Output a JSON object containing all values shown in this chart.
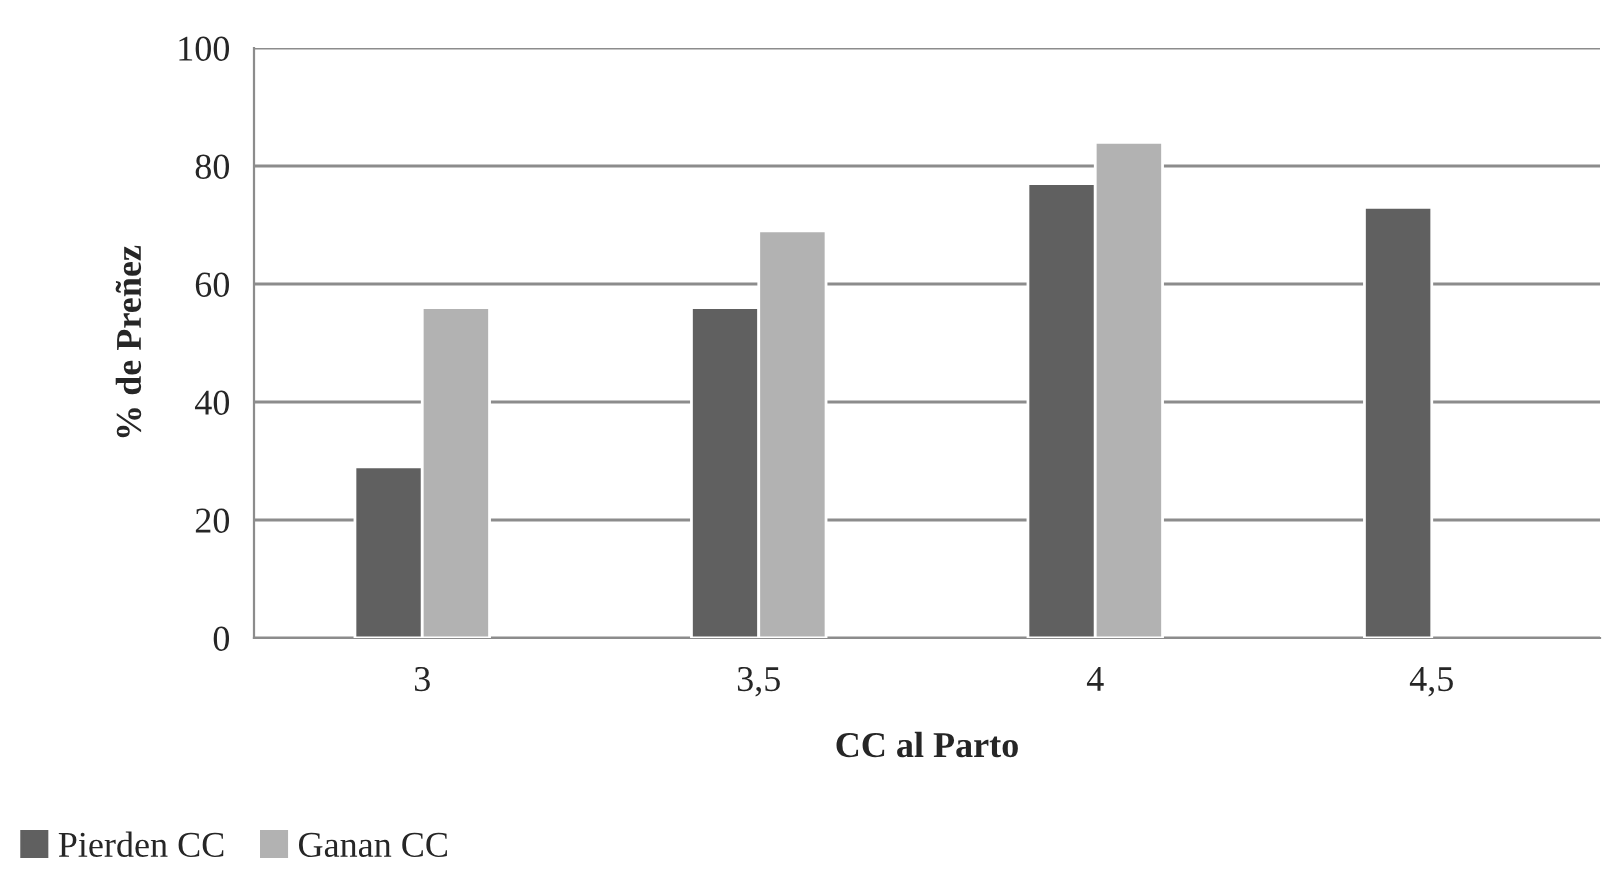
{
  "chart_data": {
    "type": "bar",
    "xlabel": "CC al Parto",
    "ylabel": "% de Preñez",
    "categories": [
      "3",
      "3,5",
      "4",
      "4,5"
    ],
    "series": [
      {
        "name": "Pierden CC",
        "color": "#606060",
        "values": [
          29,
          56,
          77,
          73
        ]
      },
      {
        "name": "Ganan CC",
        "color": "#b2b2b2",
        "values": [
          56,
          69,
          84,
          null
        ]
      }
    ],
    "ylim": [
      0,
      100
    ],
    "yticks": [
      0,
      20,
      40,
      60,
      80,
      100
    ],
    "grid": "y",
    "legend": "bottom left"
  }
}
